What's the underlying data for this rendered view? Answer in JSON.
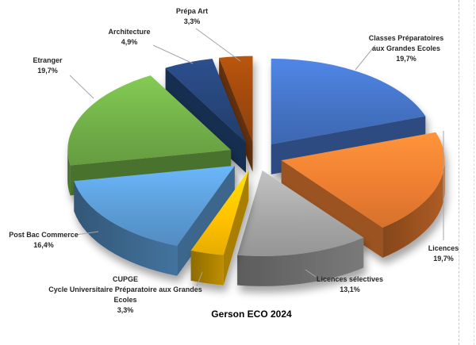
{
  "chart_data": {
    "type": "pie",
    "style": "3d-exploded",
    "title": "Gerson ECO 2024",
    "legend": "none",
    "direction": "clockwise",
    "start_angle_deg": 0,
    "leader_line_color": "#a6a6a6",
    "label_color": "#262626",
    "slices": [
      {
        "id": "classes-prepa",
        "label": "Classes Préparatoires aux Grandes Ecoles",
        "value": 19.7,
        "percent_label": "19,7%",
        "color": "#4472C4",
        "label_lines": [
          "Classes Préparatoires",
          "aux Grandes Ecoles",
          "19,7%"
        ]
      },
      {
        "id": "licences",
        "label": "Licences",
        "value": 19.7,
        "percent_label": "19,7%",
        "color": "#ED7D31",
        "label_lines": [
          "Licences",
          "19,7%"
        ]
      },
      {
        "id": "licences-selectives",
        "label": "Licences sélectives",
        "value": 13.1,
        "percent_label": "13,1%",
        "color": "#A5A5A5",
        "label_lines": [
          "Licences sélectives",
          "13,1%"
        ]
      },
      {
        "id": "cupge",
        "label": "CUPGE Cycle Universitaire Préparatoire aux Grandes Ecoles",
        "value": 3.3,
        "percent_label": "3,3%",
        "color": "#FFC000",
        "label_lines": [
          "CUPGE",
          "Cycle Universitaire Préparatoire aux Grandes",
          "Ecoles",
          "3,3%"
        ]
      },
      {
        "id": "post-bac-commerce",
        "label": "Post Bac Commerce",
        "value": 16.4,
        "percent_label": "16,4%",
        "color": "#5B9BD5",
        "label_lines": [
          "Post Bac Commerce",
          "16,4%"
        ]
      },
      {
        "id": "etranger",
        "label": "Etranger",
        "value": 19.7,
        "percent_label": "19,7%",
        "color": "#70AD47",
        "label_lines": [
          "Etranger",
          "19,7%"
        ]
      },
      {
        "id": "architecture",
        "label": "Architecture",
        "value": 4.9,
        "percent_label": "4,9%",
        "color": "#264478",
        "label_lines": [
          "Architecture",
          "4,9%"
        ]
      },
      {
        "id": "prepa-art",
        "label": "Prépa Art",
        "value": 3.3,
        "percent_label": "3,3%",
        "color": "#9E480E",
        "label_lines": [
          "Prépa Art",
          "3,3%"
        ]
      }
    ]
  }
}
